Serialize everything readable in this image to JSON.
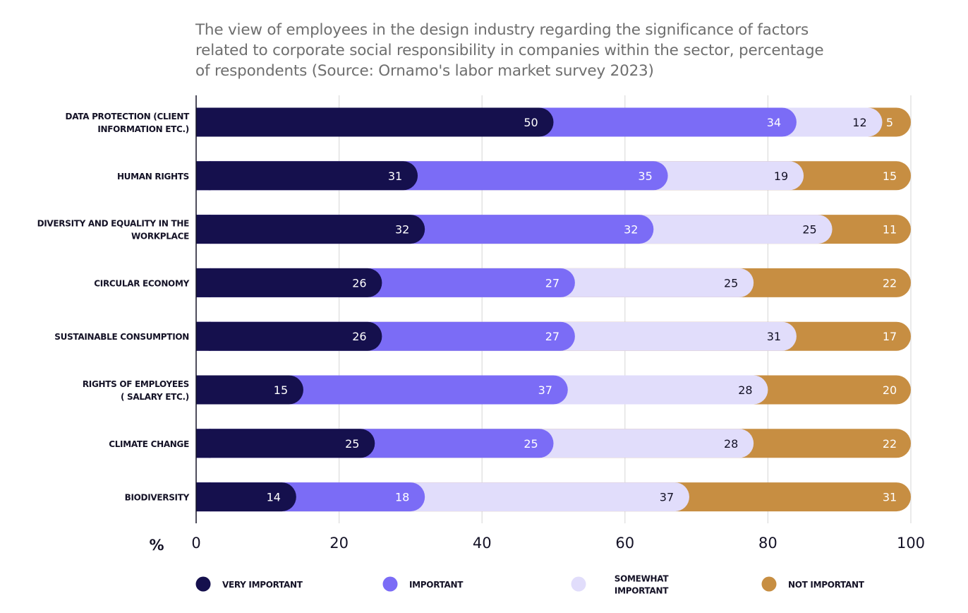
{
  "title_lines": [
    "The view of employees in the design industry regarding the significance of factors",
    "related to corporate social responsibility in companies within the sector, percentage",
    "of respondents (Source: Ornamo's labor market survey 2023)"
  ],
  "colors": {
    "very_important": "#15104d",
    "important": "#7b6cf6",
    "somewhat_important": "#e1ddfb",
    "not_important": "#c78e42",
    "label_dark_bg": "#ffffff",
    "label_light_bg": "#141226",
    "grid": "#dcdcdc",
    "axis": "#141226"
  },
  "chart_data": {
    "type": "bar",
    "orientation": "horizontal",
    "stacked": true,
    "unit": "%",
    "xlim": [
      0,
      100
    ],
    "x_ticks": [
      "0",
      "20",
      "40",
      "60",
      "80",
      "100"
    ],
    "grid": true,
    "legend_position": "bottom",
    "categories": [
      [
        "DATA PROTECTION (CLIENT",
        "INFORMATION ETC.)"
      ],
      [
        "HUMAN RIGHTS"
      ],
      [
        "DIVERSITY AND EQUALITY IN THE",
        "WORKPLACE"
      ],
      [
        "CIRCULAR ECONOMY"
      ],
      [
        "SUSTAINABLE CONSUMPTION"
      ],
      [
        "RIGHTS OF EMPLOYEES",
        "( SALARY ETC.)"
      ],
      [
        "CLIMATE CHANGE"
      ],
      [
        "BIODIVERSITY"
      ]
    ],
    "series": [
      {
        "name": [
          "VERY IMPORTANT"
        ],
        "key": "very_important",
        "values": [
          50,
          31,
          32,
          26,
          26,
          15,
          25,
          14
        ]
      },
      {
        "name": [
          "IMPORTANT"
        ],
        "key": "important",
        "values": [
          34,
          35,
          32,
          27,
          27,
          37,
          25,
          18
        ]
      },
      {
        "name": [
          "SOMEWHAT",
          "IMPORTANT"
        ],
        "key": "somewhat_important",
        "values": [
          12,
          19,
          25,
          25,
          31,
          28,
          28,
          37
        ]
      },
      {
        "name": [
          "NOT IMPORTANT"
        ],
        "key": "not_important",
        "values": [
          5,
          15,
          11,
          22,
          17,
          20,
          22,
          31
        ]
      }
    ]
  }
}
